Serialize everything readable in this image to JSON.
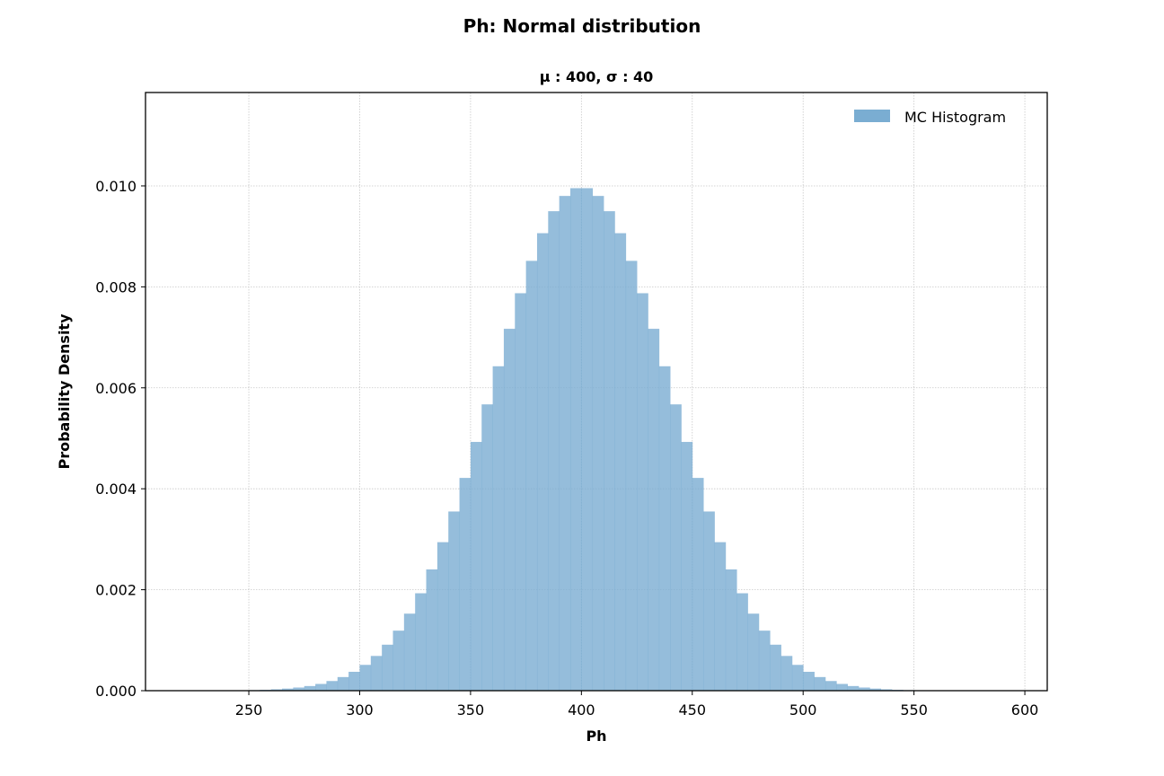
{
  "chart_data": {
    "type": "bar",
    "suptitle": "Ph: Normal distribution",
    "title": "μ : 400, σ : 40",
    "xlabel": "Ph",
    "ylabel": "Probability Density",
    "xlim": [
      203.4,
      610.1
    ],
    "ylim": [
      0,
      0.01185
    ],
    "xticks": [
      "250",
      "300",
      "350",
      "400",
      "450",
      "500",
      "550",
      "600"
    ],
    "yticks": [
      "0.000",
      "0.002",
      "0.004",
      "0.006",
      "0.008",
      "0.010"
    ],
    "grid": true,
    "legend": {
      "position": "top-right",
      "entries": [
        "MC Histogram"
      ]
    },
    "series": [
      {
        "name": "MC Histogram",
        "color": "#7aadd2",
        "bin_width": 5,
        "bin_starts": [
          250,
          255,
          260,
          265,
          270,
          275,
          280,
          285,
          290,
          295,
          300,
          305,
          310,
          315,
          320,
          325,
          330,
          335,
          340,
          345,
          350,
          355,
          360,
          365,
          370,
          375,
          380,
          385,
          390,
          395,
          400,
          405,
          410,
          415,
          420,
          425,
          430,
          435,
          440,
          445,
          450,
          455,
          460,
          465,
          470,
          475,
          480,
          485,
          490,
          495,
          500,
          505,
          510,
          515,
          520,
          525,
          530,
          535,
          540,
          545,
          550,
          555
        ],
        "values": [
          1.11e-05,
          1.75e-05,
          2.71e-05,
          4.13e-05,
          6.21e-05,
          9.17e-05,
          0.0001335,
          0.000191,
          0.00027,
          0.000374,
          0.000511,
          0.000688,
          0.000911,
          0.001189,
          0.001526,
          0.00193,
          0.002402,
          0.002942,
          0.00355,
          0.004215,
          0.004928,
          0.005672,
          0.006427,
          0.007169,
          0.007874,
          0.008515,
          0.009063,
          0.009499,
          0.009801,
          0.009955,
          0.009955,
          0.009801,
          0.009499,
          0.009063,
          0.008515,
          0.007874,
          0.007169,
          0.006427,
          0.005672,
          0.004928,
          0.004215,
          0.00355,
          0.002942,
          0.002402,
          0.00193,
          0.001526,
          0.001189,
          0.000911,
          0.000688,
          0.000511,
          0.000374,
          0.00027,
          0.000191,
          0.0001335,
          9.17e-05,
          6.21e-05,
          4.13e-05,
          2.71e-05,
          1.75e-05,
          1.11e-05,
          7e-06,
          4e-06
        ]
      }
    ]
  }
}
